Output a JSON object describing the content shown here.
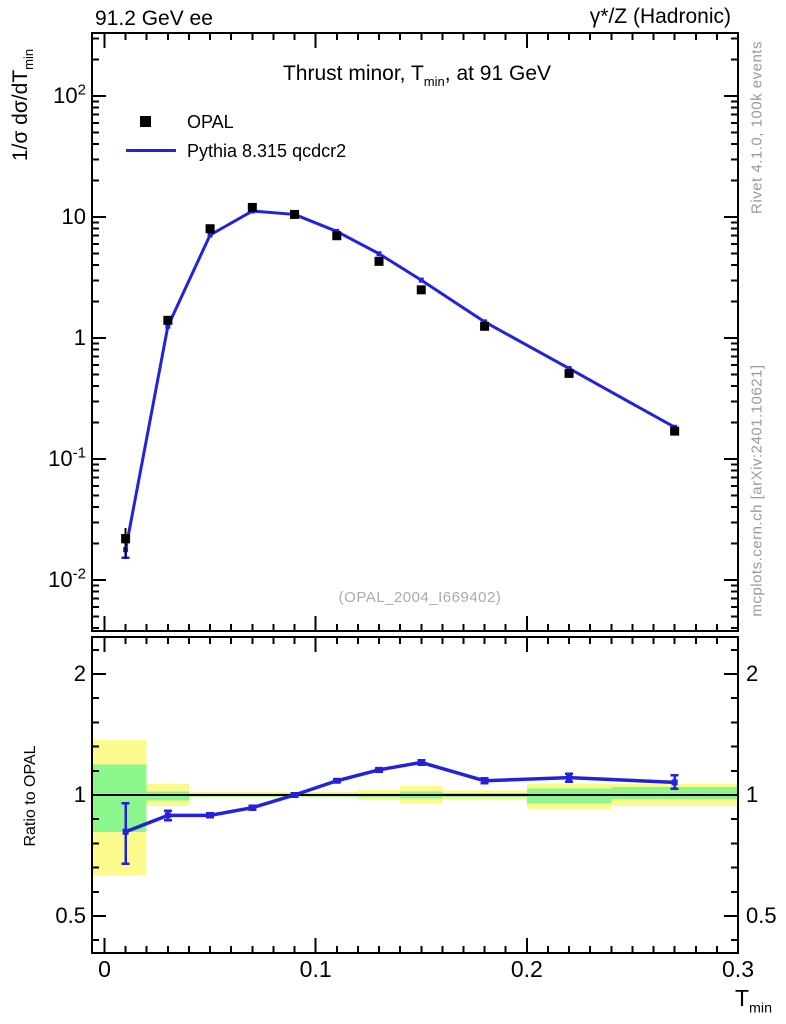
{
  "header": {
    "left": "91.2 GeV ee",
    "right": "γ*/Z (Hadronic)"
  },
  "title": {
    "pre": "Thrust minor, T",
    "sub": "min",
    "post": ", at 91 GeV"
  },
  "legend": {
    "entries": [
      {
        "label": "OPAL",
        "type": "square-marker",
        "color": "#000000"
      },
      {
        "label": "Pythia 8.315 qcdcr2",
        "type": "line",
        "color": "#2222dd"
      }
    ]
  },
  "watermark": {
    "text": "(OPAL_2004_I669402)"
  },
  "side_text": {
    "rivet": "Rivet 4.1.0,  100k events",
    "mcplots": "mcplots.cern.ch [arXiv:2401.10621]"
  },
  "axes": {
    "x": {
      "pre": "T",
      "sub": "min"
    },
    "y_main": {
      "pre": "1/σ  dσ/dT",
      "sub": "min"
    },
    "y_ratio": {
      "label": "Ratio to OPAL"
    }
  },
  "colors": {
    "pythia_blue": "#2222dd",
    "opal_black": "#000000",
    "band_yellow": "#fbfb8d",
    "band_green": "#8cf78c",
    "frame_black": "#000000",
    "gray_text": "#9a9a9a"
  },
  "chart_data": {
    "type": "line",
    "title": "Thrust minor, T_min, at 91 GeV",
    "xlabel": "T_min",
    "ylabel": "1/σ dσ/dT_min",
    "ratio_ylabel": "Ratio to OPAL",
    "xlim": [
      -0.006,
      0.3
    ],
    "ylim_main": [
      0.0038,
      331
    ],
    "ylim_ratio": [
      0.404,
      2.47
    ],
    "x_log": false,
    "y_log": true,
    "x_ticks": [
      {
        "v": 0,
        "label": "0"
      },
      {
        "v": 0.1,
        "label": "0.1"
      },
      {
        "v": 0.2,
        "label": "0.2"
      },
      {
        "v": 0.3,
        "label": "0.3"
      }
    ],
    "main_y_ticks": [
      {
        "v": 100,
        "base": "10",
        "exp": "2"
      },
      {
        "v": 10,
        "base": "10",
        "exp": ""
      },
      {
        "v": 1,
        "base": "1",
        "exp": ""
      },
      {
        "v": 0.1,
        "base": "10",
        "exp": "-1"
      },
      {
        "v": 0.01,
        "base": "10",
        "exp": "-2"
      }
    ],
    "ratio_y_ticks": [
      {
        "v": 0.5,
        "label": "0.5"
      },
      {
        "v": 1,
        "label": "1"
      },
      {
        "v": 2,
        "label": "2"
      }
    ],
    "bin_edges": [
      0,
      0.02,
      0.04,
      0.06,
      0.08,
      0.1,
      0.12,
      0.14,
      0.16,
      0.2,
      0.24,
      0.3
    ],
    "x": [
      0.01,
      0.03,
      0.05,
      0.07,
      0.09,
      0.11,
      0.13,
      0.15,
      0.18,
      0.22,
      0.27
    ],
    "series": [
      {
        "name": "OPAL",
        "type": "scatter",
        "marker": "filled-square",
        "color": "#000000",
        "values": [
          0.022,
          1.4,
          8.0,
          12.0,
          10.5,
          7.0,
          4.3,
          2.5,
          1.25,
          0.51,
          0.17
        ],
        "err_lo": [
          0.015,
          1.37,
          7.9,
          11.85,
          10.37,
          6.91,
          4.24,
          2.46,
          1.23,
          0.5,
          0.167
        ],
        "err_hi": [
          0.027,
          1.43,
          8.1,
          12.15,
          10.63,
          7.09,
          4.36,
          2.54,
          1.27,
          0.52,
          0.173
        ]
      },
      {
        "name": "Pythia 8.315 qcdcr2",
        "type": "line+marker",
        "color": "#2222dd",
        "values": [
          0.0178,
          1.25,
          7.1,
          11.2,
          10.5,
          7.6,
          4.97,
          3.01,
          1.36,
          0.56,
          0.183
        ],
        "err_lo": [
          0.0152,
          1.24,
          7.05,
          11.13,
          10.44,
          7.55,
          4.94,
          2.99,
          1.35,
          0.555,
          0.18
        ],
        "err_hi": [
          0.0205,
          1.26,
          7.15,
          11.27,
          10.56,
          7.65,
          5.0,
          3.03,
          1.37,
          0.565,
          0.186
        ]
      }
    ],
    "ratio": {
      "name": "Pythia/OPAL",
      "values": [
        0.81,
        0.89,
        0.89,
        0.93,
        1.0,
        1.085,
        1.155,
        1.205,
        1.085,
        1.105,
        1.075
      ],
      "err_lo": [
        0.675,
        0.865,
        0.88,
        0.92,
        0.99,
        1.075,
        1.143,
        1.19,
        1.07,
        1.08,
        1.035
      ],
      "err_hi": [
        0.955,
        0.915,
        0.9,
        0.94,
        1.01,
        1.095,
        1.167,
        1.22,
        1.1,
        1.13,
        1.12
      ],
      "unity_line": 1.0,
      "bands": {
        "yellow": [
          [
            0.63,
            1.37
          ],
          [
            0.94,
            1.065
          ],
          [
            0.982,
            1.018
          ],
          [
            0.982,
            1.018
          ],
          [
            0.982,
            1.018
          ],
          [
            0.982,
            1.018
          ],
          [
            0.972,
            1.028
          ],
          [
            0.95,
            1.053
          ],
          [
            0.975,
            1.025
          ],
          [
            0.922,
            1.069
          ],
          [
            0.939,
            1.065
          ]
        ],
        "green": [
          [
            0.81,
            1.19
          ],
          [
            0.97,
            1.02
          ],
          [
            0.992,
            1.008
          ],
          [
            0.992,
            1.008
          ],
          [
            0.992,
            1.008
          ],
          [
            0.992,
            1.008
          ],
          [
            0.99,
            1.01
          ],
          [
            0.98,
            1.02
          ],
          [
            0.988,
            1.012
          ],
          [
            0.953,
            1.039
          ],
          [
            0.977,
            1.047
          ]
        ]
      },
      "legend_position": "none",
      "grid": false
    }
  }
}
